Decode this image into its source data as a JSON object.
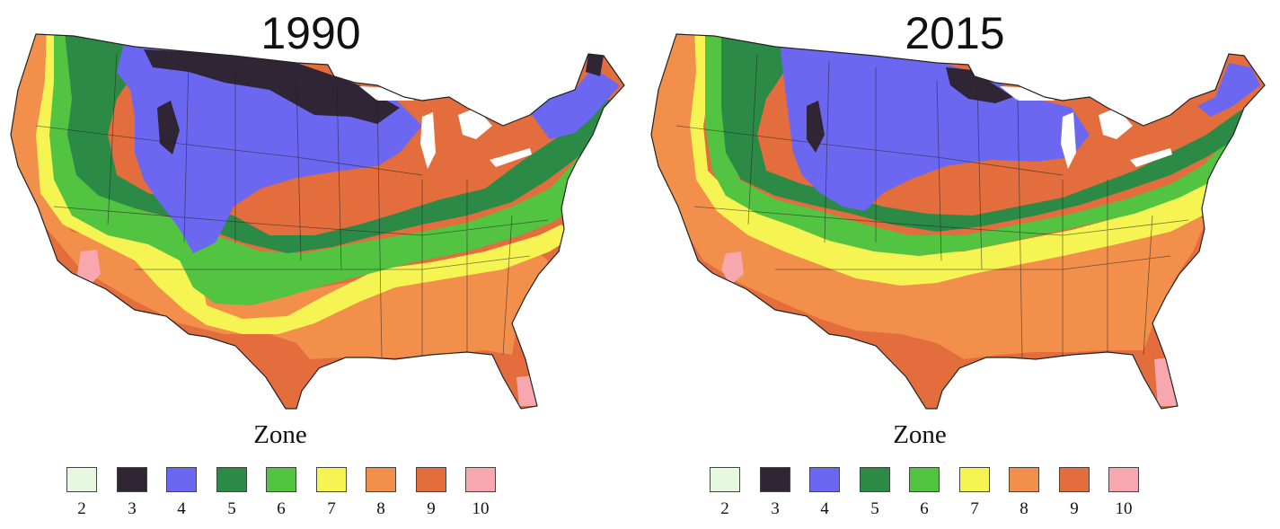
{
  "zone_colors": {
    "2": "#e5f8dd",
    "3": "#2f2534",
    "4": "#6b67f0",
    "5": "#2c8a47",
    "6": "#52c442",
    "7": "#f6f452",
    "8": "#f28f4a",
    "9": "#e36d3d",
    "10": "#f7a7ad"
  },
  "panels": [
    {
      "year": "1990",
      "legend_title": "Zone",
      "legend": [
        {
          "label": "2",
          "color": "#e5f8dd"
        },
        {
          "label": "3",
          "color": "#2f2534"
        },
        {
          "label": "4",
          "color": "#6b67f0"
        },
        {
          "label": "5",
          "color": "#2c8a47"
        },
        {
          "label": "6",
          "color": "#52c442"
        },
        {
          "label": "7",
          "color": "#f6f452"
        },
        {
          "label": "8",
          "color": "#f28f4a"
        },
        {
          "label": "9",
          "color": "#e36d3d"
        },
        {
          "label": "10",
          "color": "#f7a7ad"
        }
      ]
    },
    {
      "year": "2015",
      "legend_title": "Zone",
      "legend": [
        {
          "label": "2",
          "color": "#e5f8dd"
        },
        {
          "label": "3",
          "color": "#2f2534"
        },
        {
          "label": "4",
          "color": "#6b67f0"
        },
        {
          "label": "5",
          "color": "#2c8a47"
        },
        {
          "label": "6",
          "color": "#52c442"
        },
        {
          "label": "7",
          "color": "#f6f452"
        },
        {
          "label": "8",
          "color": "#f28f4a"
        },
        {
          "label": "9",
          "color": "#e36d3d"
        },
        {
          "label": "10",
          "color": "#f7a7ad"
        }
      ]
    }
  ]
}
